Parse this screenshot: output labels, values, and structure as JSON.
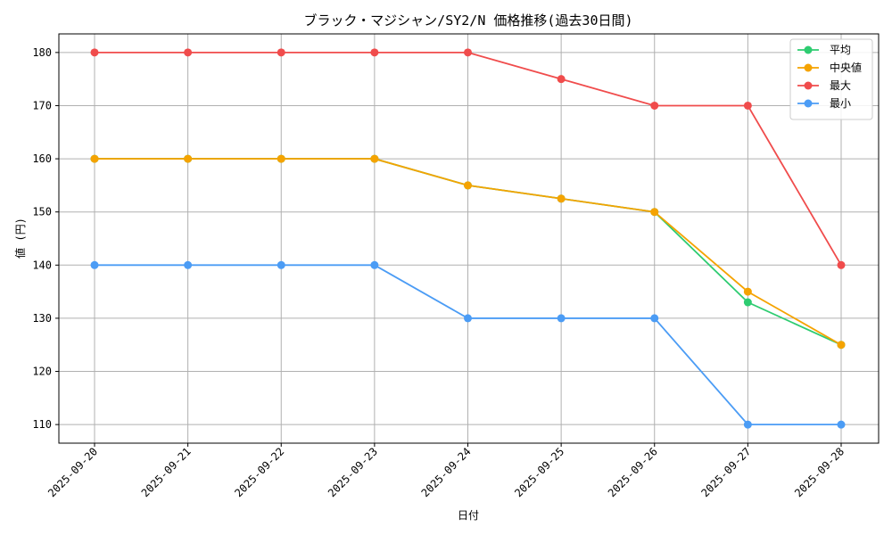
{
  "chart_data": {
    "type": "line",
    "title": "ブラック・マジシャン/SY2/N 価格推移(過去30日間)",
    "xlabel": "日付",
    "ylabel": "値 (円)",
    "categories": [
      "2025-09-20",
      "2025-09-21",
      "2025-09-22",
      "2025-09-23",
      "2025-09-24",
      "2025-09-25",
      "2025-09-26",
      "2025-09-27",
      "2025-09-28"
    ],
    "ylim": [
      106.5,
      183.5
    ],
    "yticks": [
      110,
      120,
      130,
      140,
      150,
      160,
      170,
      180
    ],
    "grid": true,
    "legend_position": "top-right",
    "series": [
      {
        "name": "平均",
        "color": "#2ecc71",
        "values": [
          160,
          160,
          160,
          160,
          155,
          152.5,
          150,
          133,
          125
        ]
      },
      {
        "name": "中央値",
        "color": "#f5a300",
        "values": [
          160,
          160,
          160,
          160,
          155,
          152.5,
          150,
          135,
          125
        ]
      },
      {
        "name": "最大",
        "color": "#f04c4c",
        "values": [
          180,
          180,
          180,
          180,
          180,
          175,
          170,
          170,
          140
        ]
      },
      {
        "name": "最小",
        "color": "#4b9cf5",
        "values": [
          140,
          140,
          140,
          140,
          130,
          130,
          130,
          110,
          110
        ]
      }
    ]
  }
}
